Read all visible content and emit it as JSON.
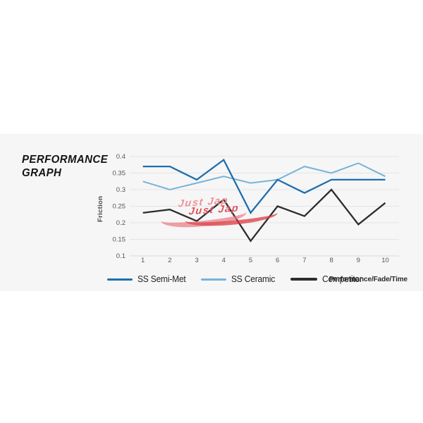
{
  "title": {
    "line1": "PERFORMANCE",
    "line2": "GRAPH",
    "full": "PERFORMANCE GRAPH"
  },
  "watermark": {
    "line1": "Just Jap",
    "line2": "Just Jap",
    "color_primary": "#d8303a",
    "color_secondary": "#ee767e"
  },
  "chart_data": {
    "type": "line",
    "title": "PERFORMANCE GRAPH",
    "xlabel": "Performance/Fade/Time",
    "ylabel": "Friction",
    "x": [
      1,
      2,
      3,
      4,
      5,
      6,
      7,
      8,
      9,
      10
    ],
    "ylim": [
      0.1,
      0.4
    ],
    "yticks": [
      0.4,
      0.35,
      0.3,
      0.25,
      0.2,
      0.15,
      0.1
    ],
    "grid": true,
    "legend_position": "bottom",
    "background_color": "#f6f6f7",
    "gridline_color": "#e4e4e6",
    "series": [
      {
        "name": "SS Ceramic",
        "color": "#79b3d7",
        "width": 2,
        "values": [
          0.325,
          0.3,
          0.32,
          0.34,
          0.32,
          0.33,
          0.37,
          0.35,
          0.38,
          0.34
        ]
      },
      {
        "name": "SS Semi-Met",
        "color": "#1e6fad",
        "width": 2.3,
        "values": [
          0.37,
          0.37,
          0.33,
          0.39,
          0.23,
          0.33,
          0.29,
          0.33,
          0.33,
          0.33
        ]
      },
      {
        "name": "Competitor",
        "color": "#2d2d2f",
        "width": 2.3,
        "values": [
          0.23,
          0.24,
          0.205,
          0.27,
          0.145,
          0.25,
          0.22,
          0.3,
          0.195,
          0.26
        ]
      }
    ],
    "legend_order": [
      "SS Semi-Met",
      "SS Ceramic",
      "Competitor"
    ]
  }
}
